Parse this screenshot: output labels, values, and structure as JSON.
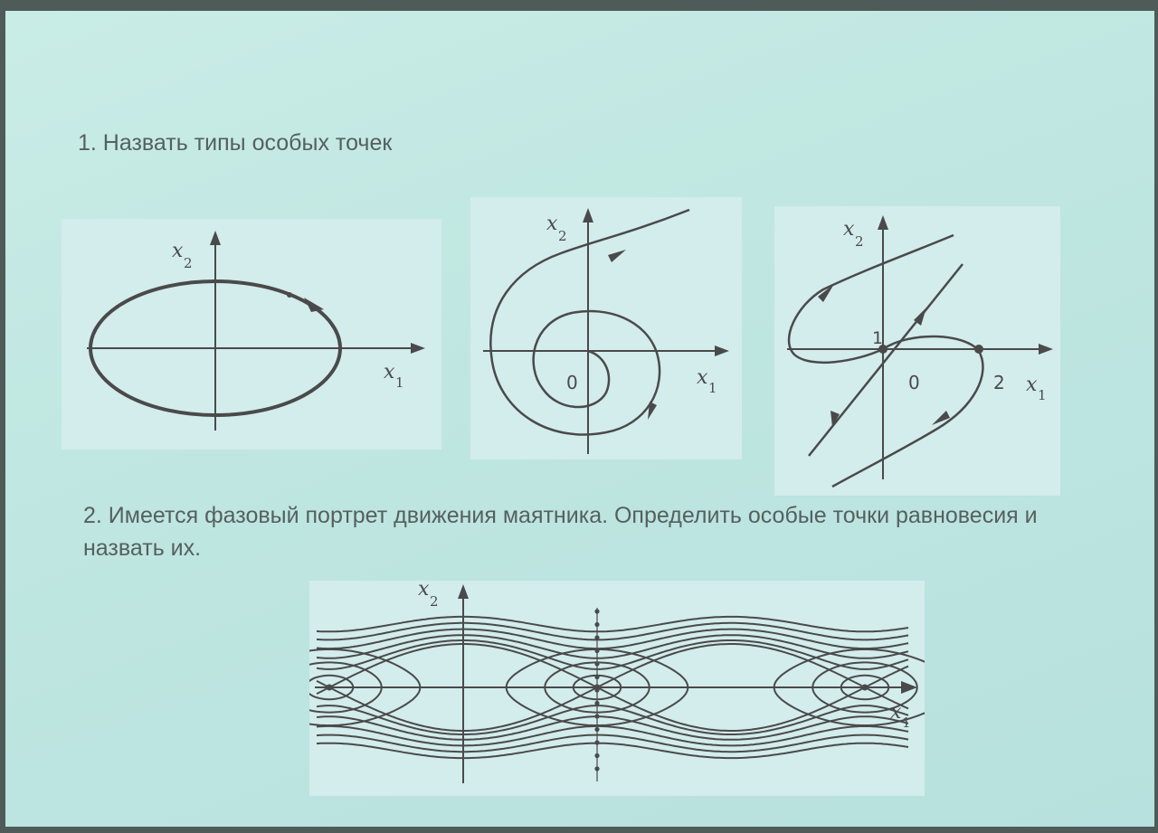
{
  "task1": {
    "text": "1. Назвать типы особых точек"
  },
  "task2": {
    "text": "2. Имеется  фазовый портрет движения маятника. Определить особые точки равновесия и назвать их."
  },
  "axis_labels": {
    "x1": "x",
    "x2": "x",
    "x1_sub": "1",
    "x2_sub": "2"
  },
  "fig_b": {
    "origin": "0"
  },
  "fig_c": {
    "origin": "0",
    "point_y": "1",
    "point_x": "2"
  },
  "colors": {
    "slide": "#c2e8e3",
    "panel": "#d4eeee",
    "ink": "#4a4a4a"
  }
}
